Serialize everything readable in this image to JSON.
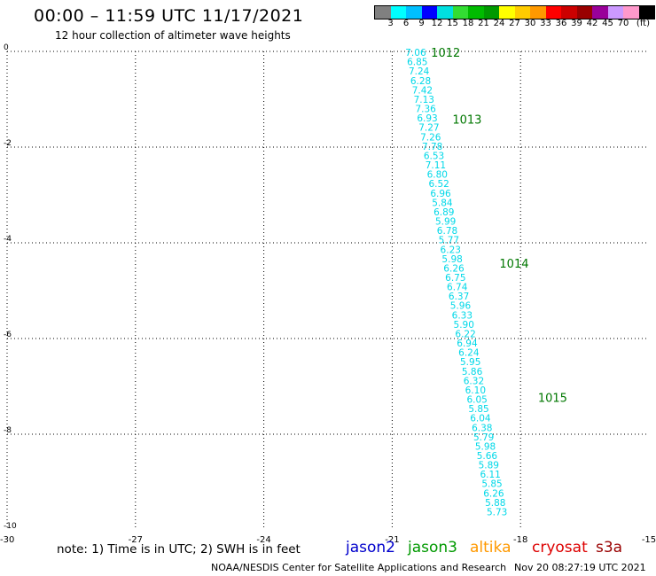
{
  "header": {
    "title": "00:00 – 11:59 UTC 11/17/2021",
    "subtitle": "12 hour collection of altimeter wave heights"
  },
  "colorbar": {
    "colors": [
      "#808080",
      "#00ffff",
      "#00bfff",
      "#0000ff",
      "#00e0e0",
      "#33dd33",
      "#00bb00",
      "#009900",
      "#ffff00",
      "#ffcc00",
      "#ff9900",
      "#ff0000",
      "#cc0000",
      "#990000",
      "#990099",
      "#cc99ff",
      "#ff99cc",
      "#000000"
    ],
    "labels": [
      "3",
      "6",
      "9",
      "12",
      "15",
      "18",
      "21",
      "24",
      "27",
      "30",
      "33",
      "36",
      "39",
      "42",
      "45",
      "70"
    ],
    "unit": "(ft)"
  },
  "footer": {
    "note": "note:  1) Time is in UTC;  2) SWH is in feet",
    "legend": [
      {
        "name": "jason2",
        "color": "#0000cc"
      },
      {
        "name": "jason3",
        "color": "#009900"
      },
      {
        "name": "altika",
        "color": "#ff9900"
      },
      {
        "name": "cryosat",
        "color": "#dd0000"
      },
      {
        "name": "s3a",
        "color": "#990000"
      }
    ],
    "credit": "NOAA/NESDIS Center for Satellite Applications and Research",
    "timestamp": "Nov 20 08:27:19 UTC 2021"
  },
  "chart_data": {
    "type": "scatter",
    "title": "00:00 – 11:59 UTC 11/17/2021",
    "subtitle": "12 hour collection of altimeter wave heights",
    "xlim": [
      -30,
      -15
    ],
    "ylim": [
      -10,
      0
    ],
    "xticks": [
      "-30",
      "-27",
      "-24",
      "-21",
      "-18",
      "-15"
    ],
    "yticks": [
      "0",
      "-2",
      "-4",
      "-6",
      "-8",
      "-10"
    ],
    "grid": true,
    "label_color": "#00d8e8",
    "time_color": "#007700",
    "track": {
      "x_start": -20.45,
      "y_start": -0.02,
      "x_end": -18.55,
      "y_end": -9.62,
      "labels": [
        "7.06",
        "6.85",
        "7.24",
        "6.28",
        "7.42",
        "7.13",
        "7.36",
        "6.93",
        "7.27",
        "7.26",
        "7.78",
        "6.53",
        "7.11",
        "6.80",
        "6.52",
        "6.96",
        "5.84",
        "6.89",
        "5.99",
        "6.78",
        "5.77",
        "6.23",
        "5.98",
        "6.26",
        "6.75",
        "6.74",
        "6.37",
        "5.96",
        "6.33",
        "5.90",
        "6.22",
        "6.94",
        "6.24",
        "5.95",
        "5.86",
        "6.32",
        "6.10",
        "6.05",
        "5.85",
        "6.04",
        "6.38",
        "5.79",
        "5.98",
        "5.66",
        "5.89",
        "6.11",
        "5.85",
        "6.26",
        "5.88",
        "5.73"
      ]
    },
    "time_labels": [
      {
        "text": "1012",
        "x": -19.75,
        "y": -0.02
      },
      {
        "text": "1013",
        "x": -19.25,
        "y": -1.42
      },
      {
        "text": "1014",
        "x": -18.15,
        "y": -4.43
      },
      {
        "text": "1015",
        "x": -17.25,
        "y": -7.23
      }
    ]
  }
}
